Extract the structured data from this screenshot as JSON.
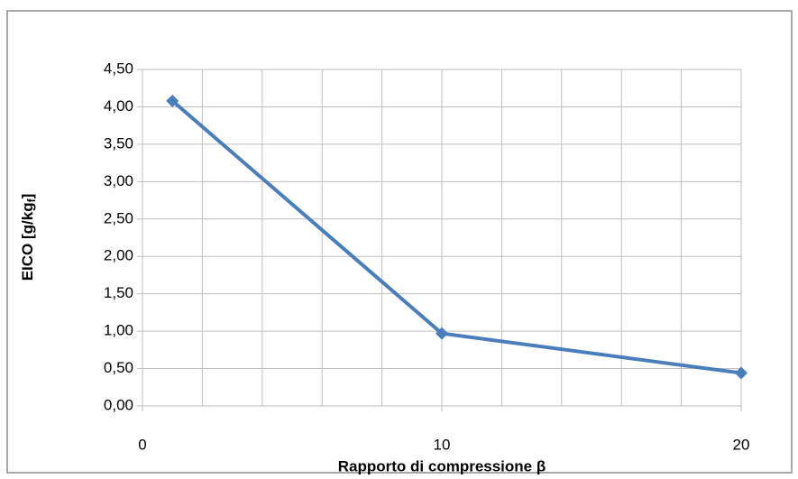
{
  "chart_data": {
    "type": "line",
    "x": [
      1,
      10,
      20
    ],
    "series": [
      {
        "name": "EICO",
        "color": "#4a7ebb",
        "values": [
          4.08,
          0.97,
          0.44
        ]
      }
    ],
    "x_label": "Rapporto di compressione β",
    "y_label": {
      "main": "EICO [g/kg",
      "sub": "f",
      "end": "]"
    },
    "xlim": [
      0,
      20
    ],
    "xticks": [
      0,
      10,
      20
    ],
    "xgrid": [
      0,
      2,
      4,
      6,
      8,
      10,
      12,
      14,
      16,
      18,
      20
    ],
    "ylim": [
      0,
      4.5
    ],
    "yticks": [
      {
        "value": 0,
        "label": "0,00"
      },
      {
        "value": 0.5,
        "label": "0,50"
      },
      {
        "value": 1,
        "label": "1,00"
      },
      {
        "value": 1.5,
        "label": "1,50"
      },
      {
        "value": 2,
        "label": "2,00"
      },
      {
        "value": 2.5,
        "label": "2,50"
      },
      {
        "value": 3,
        "label": "3,00"
      },
      {
        "value": 3.5,
        "label": "3,50"
      },
      {
        "value": 4,
        "label": "4,00"
      },
      {
        "value": 4.5,
        "label": "4,50"
      }
    ],
    "grid": true
  }
}
